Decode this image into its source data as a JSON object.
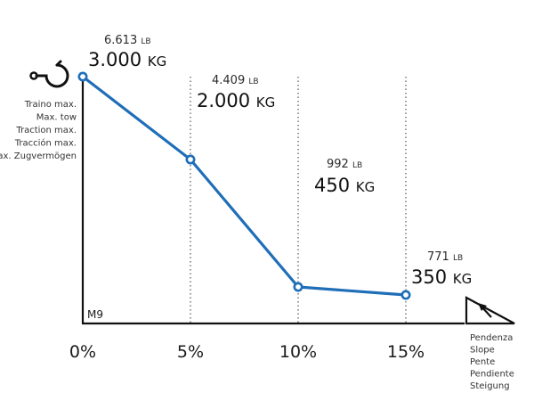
{
  "chart_data": {
    "type": "line",
    "model_label": "M9",
    "x": [
      "0%",
      "5%",
      "10%",
      "15%"
    ],
    "series": [
      {
        "values_kg": [
          3000,
          2000,
          450,
          350
        ],
        "values_lb": [
          6613,
          4409,
          992,
          771
        ]
      }
    ],
    "value_labels": [
      {
        "lb": "6.613",
        "lb_unit": "LB",
        "kg": "3.000",
        "kg_unit": "KG"
      },
      {
        "lb": "4.409",
        "lb_unit": "LB",
        "kg": "2.000",
        "kg_unit": "KG"
      },
      {
        "lb": "992",
        "lb_unit": "LB",
        "kg": "450",
        "kg_unit": "KG"
      },
      {
        "lb": "771",
        "lb_unit": "LB",
        "kg": "350",
        "kg_unit": "KG"
      }
    ],
    "ylabel_lines": [
      "Traino max.",
      "Max. tow",
      "Traction max.",
      "Tracción max.",
      "Max. Zugvermögen"
    ],
    "xlabel_lines": [
      "Pendenza",
      "Slope",
      "Pente",
      "Pendiente",
      "Steigung"
    ],
    "ylim": [
      0,
      3000
    ],
    "grid": "vertical dotted at 5%, 10%, 15%",
    "line_color": "#1f6eb8",
    "axis_color": "#111111"
  },
  "icons": {
    "y_axis": "tow-hook-icon",
    "x_axis": "slope-triangle-icon"
  }
}
